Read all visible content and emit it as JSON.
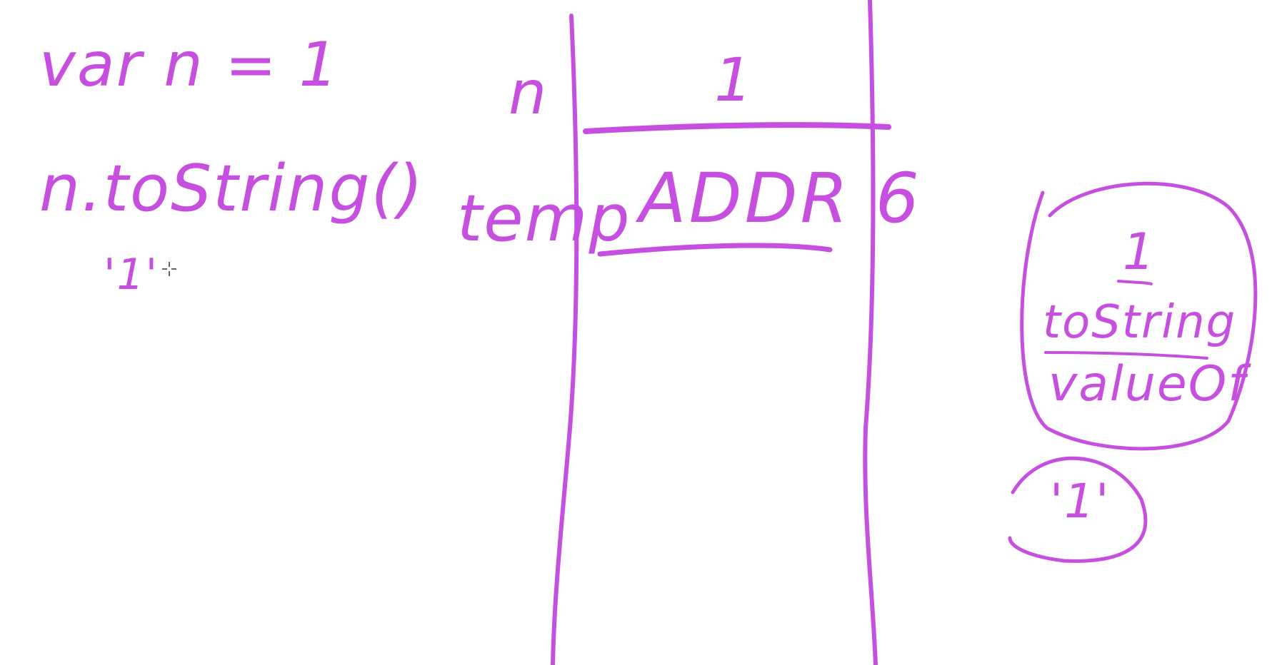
{
  "colors": {
    "ink": "#c64fe0",
    "background": "#ffffff"
  },
  "code": {
    "line1": "var n = 1",
    "line2": "n.toString()",
    "result": "'1'"
  },
  "stack": {
    "rows": [
      {
        "variable": "n",
        "value": "1"
      },
      {
        "variable": "temp",
        "value": "ADDR 6"
      }
    ]
  },
  "heap_object": {
    "value": "1",
    "methods": [
      "toString",
      "valueOf"
    ]
  },
  "result_bubble": {
    "text": "'1'"
  },
  "icons": {
    "cursor": "crosshair-cursor-icon"
  }
}
